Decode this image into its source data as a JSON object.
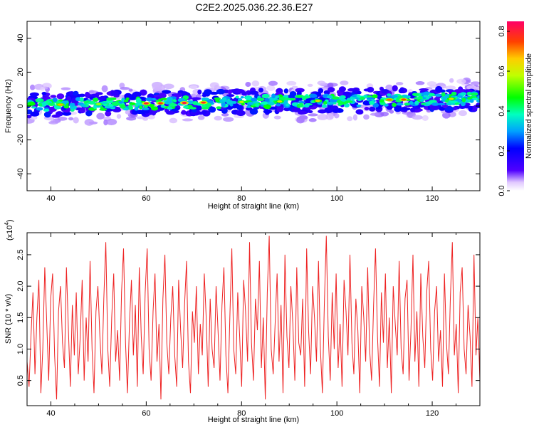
{
  "title": "C2E2.2025.036.22.36.E27",
  "chart_data": [
    {
      "type": "heatmap",
      "xlabel": "Height of straight line (km)",
      "ylabel": "Frequency (Hz)",
      "xlim": [
        35,
        130
      ],
      "ylim": [
        -50,
        50
      ],
      "x_ticks": [
        "40",
        "60",
        "80",
        "100",
        "120"
      ],
      "y_ticks": [
        "40",
        "20",
        "0",
        "-20",
        "-40"
      ],
      "x_tick_values": [
        40,
        60,
        80,
        100,
        120
      ],
      "y_tick_values": [
        40,
        20,
        0,
        -20,
        -40
      ],
      "band": {
        "center_start_hz": 0.5,
        "center_end_hz": 4.5,
        "halfwidth_hz": 6
      },
      "colorbar": {
        "label": "Normalized spectral amplitude",
        "range": [
          0.0,
          0.85
        ],
        "ticks": [
          "0.0",
          "0.2",
          "0.4",
          "0.6",
          "0.8"
        ],
        "tick_values": [
          0.0,
          0.2,
          0.4,
          0.6,
          0.8
        ],
        "colors": [
          "#ffffff",
          "#5000ff",
          "#0000ff",
          "#00a0ff",
          "#00ffc0",
          "#00ff00",
          "#c0ff00",
          "#ffcc00",
          "#ff4000",
          "#ff0066"
        ]
      }
    },
    {
      "type": "line",
      "xlabel": "Height of straight line (km)",
      "ylabel": "SNR (10 * v/v)",
      "multiplier": "(x10",
      "multiplier_exp": "4",
      "multiplier_close": ")",
      "xlim": [
        35,
        130
      ],
      "ylim": [
        0.1,
        2.85
      ],
      "x_ticks": [
        "40",
        "60",
        "80",
        "100",
        "120"
      ],
      "y_ticks": [
        "0.5",
        "1.0",
        "1.5",
        "2.0",
        "2.5"
      ],
      "x_tick_values": [
        40,
        60,
        80,
        100,
        120
      ],
      "y_tick_values": [
        0.5,
        1.0,
        1.5,
        2.0,
        2.5
      ],
      "series": [
        {
          "color": "#ee2222",
          "x_start": 35,
          "x_end": 130,
          "values": [
            0.8,
            0.4,
            1.2,
            1.9,
            0.6,
            1.5,
            2.1,
            0.3,
            1.0,
            2.3,
            1.4,
            0.5,
            1.8,
            2.2,
            0.9,
            0.2,
            1.6,
            2.0,
            1.1,
            0.7,
            2.3,
            1.3,
            0.4,
            1.7,
            0.9,
            1.9,
            0.6,
            1.2,
            2.1,
            0.5,
            1.5,
            0.8,
            2.4,
            1.0,
            0.3,
            1.6,
            2.0,
            1.2,
            0.6,
            1.8,
            2.7,
            1.0,
            0.4,
            1.5,
            2.2,
            0.8,
            1.3,
            0.5,
            1.9,
            2.6,
            1.1,
            0.3,
            1.4,
            2.1,
            0.9,
            1.7,
            0.4,
            2.3,
            1.2,
            0.6,
            1.9,
            2.6,
            1.0,
            0.5,
            1.6,
            2.2,
            0.8,
            1.4,
            0.2,
            1.8,
            2.5,
            1.1,
            0.6,
            1.5,
            2.0,
            0.9,
            0.4,
            2.1,
            1.3,
            0.7,
            1.7,
            2.4,
            0.8,
            0.3,
            1.6,
            1.1,
            2.0,
            0.6,
            1.4,
            0.9,
            2.2,
            1.5,
            0.4,
            1.8,
            1.0,
            0.7,
            2.0,
            1.3,
            0.5,
            1.7,
            2.3,
            0.9,
            0.3,
            1.5,
            2.6,
            1.0,
            0.6,
            1.9,
            1.2,
            0.4,
            2.1,
            1.6,
            0.8,
            2.7,
            1.1,
            0.5,
            1.8,
            1.3,
            2.4,
            0.7,
            1.5,
            0.2,
            1.9,
            2.8,
            1.0,
            0.6,
            1.4,
            2.2,
            0.8,
            1.7,
            0.3,
            2.5,
            1.2,
            0.7,
            2.0,
            1.4,
            0.5,
            2.3,
            1.1,
            0.9,
            1.8,
            0.4,
            2.6,
            1.3,
            0.6,
            2.0,
            1.5,
            0.8,
            2.4,
            1.0,
            0.3,
            1.7,
            2.8,
            1.2,
            0.5,
            1.9,
            1.0,
            2.2,
            0.7,
            1.4,
            0.4,
            2.1,
            1.6,
            0.9,
            2.5,
            1.1,
            0.6,
            1.8,
            1.3,
            0.3,
            2.0,
            1.5,
            0.8,
            2.3,
            1.0,
            0.5,
            1.7,
            2.6,
            1.2,
            0.4,
            1.9,
            1.1,
            2.2,
            0.7,
            1.5,
            0.3,
            2.0,
            1.4,
            0.9,
            2.4,
            1.0,
            0.6,
            1.8,
            2.1,
            0.5,
            1.3,
            2.5,
            0.8,
            1.6,
            0.4,
            2.2,
            1.2,
            0.7,
            1.9,
            2.4,
            1.0,
            0.5,
            1.6,
            2.0,
            0.8,
            1.3,
            0.4,
            2.2,
            1.1,
            0.6,
            1.8,
            2.7,
            0.9,
            1.4,
            0.3,
            1.9,
            2.3,
            1.0,
            0.6,
            1.7,
            1.2,
            0.4,
            2.5,
            0.9,
            1.5,
            0.5
          ]
        }
      ]
    }
  ]
}
